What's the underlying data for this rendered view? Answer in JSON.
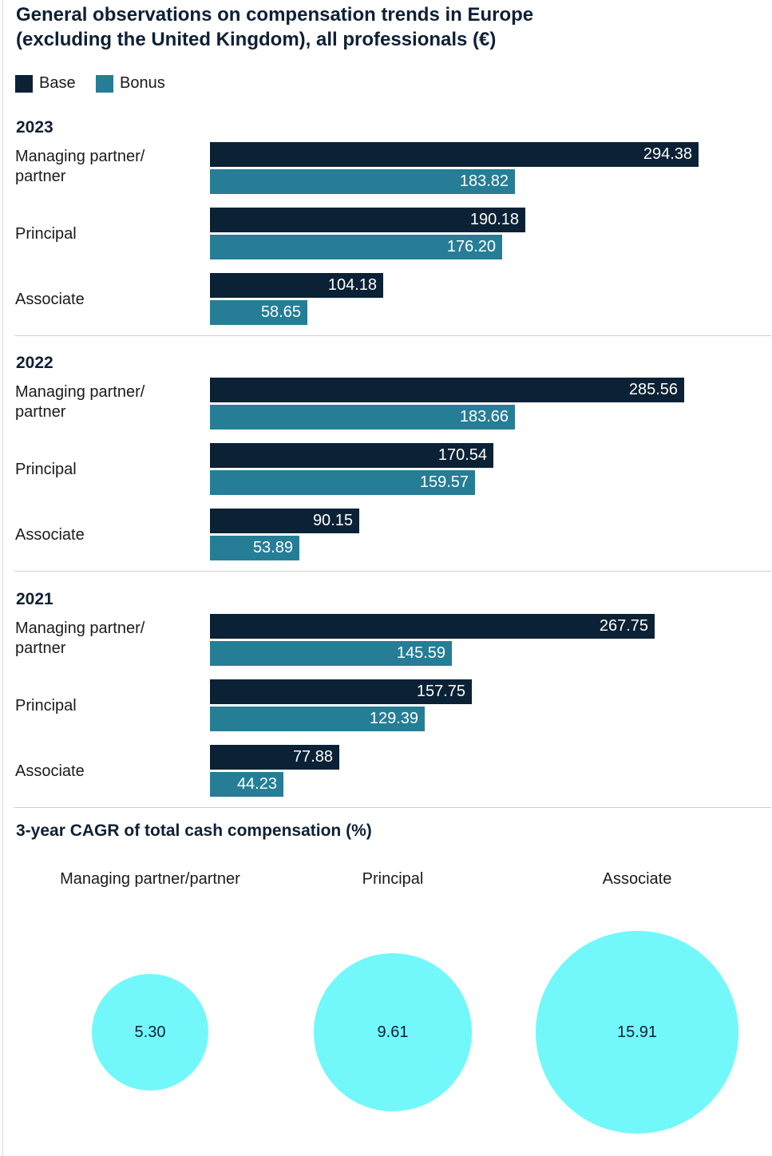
{
  "title": {
    "line1": "General observations on compensation trends in Europe",
    "line2": "(excluding the United Kingdom), all professionals (€)"
  },
  "colors": {
    "base": "#0b2135",
    "bonus": "#267d96",
    "bubble": "#72f8fb"
  },
  "legend": [
    {
      "label": "Base",
      "color": "#0b2135"
    },
    {
      "label": "Bonus",
      "color": "#267d96"
    }
  ],
  "chart_data": [
    {
      "type": "bar",
      "orientation": "horizontal",
      "title": "2023",
      "categories": [
        [
          "Managing partner/",
          "partner"
        ],
        [
          "Principal"
        ],
        [
          "Associate"
        ]
      ],
      "series": [
        {
          "name": "Base",
          "values": [
            294.38,
            190.18,
            104.18
          ],
          "labels": [
            "294.38",
            "190.18",
            "104.18"
          ]
        },
        {
          "name": "Bonus",
          "values": [
            183.82,
            176.2,
            58.65
          ],
          "labels": [
            "183.82",
            "176.20",
            "58.65"
          ]
        }
      ],
      "xlim": [
        0,
        340
      ]
    },
    {
      "type": "bar",
      "orientation": "horizontal",
      "title": "2022",
      "categories": [
        [
          "Managing partner/",
          "partner"
        ],
        [
          "Principal"
        ],
        [
          "Associate"
        ]
      ],
      "series": [
        {
          "name": "Base",
          "values": [
            285.56,
            170.54,
            90.15
          ],
          "labels": [
            "285.56",
            "170.54",
            "90.15"
          ]
        },
        {
          "name": "Bonus",
          "values": [
            183.66,
            159.57,
            53.89
          ],
          "labels": [
            "183.66",
            "159.57",
            "53.89"
          ]
        }
      ],
      "xlim": [
        0,
        340
      ]
    },
    {
      "type": "bar",
      "orientation": "horizontal",
      "title": "2021",
      "categories": [
        [
          "Managing partner/",
          "partner"
        ],
        [
          "Principal"
        ],
        [
          "Associate"
        ]
      ],
      "series": [
        {
          "name": "Base",
          "values": [
            267.75,
            157.75,
            77.88
          ],
          "labels": [
            "267.75",
            "157.75",
            "77.88"
          ]
        },
        {
          "name": "Bonus",
          "values": [
            145.59,
            129.39,
            44.23
          ],
          "labels": [
            "145.59",
            "129.39",
            "44.23"
          ]
        }
      ],
      "xlim": [
        0,
        340
      ]
    },
    {
      "type": "bubble",
      "title": "3-year CAGR of total cash compensation (%)",
      "categories": [
        "Managing partner/partner",
        "Principal",
        "Associate"
      ],
      "values": [
        5.3,
        9.61,
        15.91
      ],
      "labels": [
        "5.30",
        "9.61",
        "15.91"
      ]
    }
  ]
}
